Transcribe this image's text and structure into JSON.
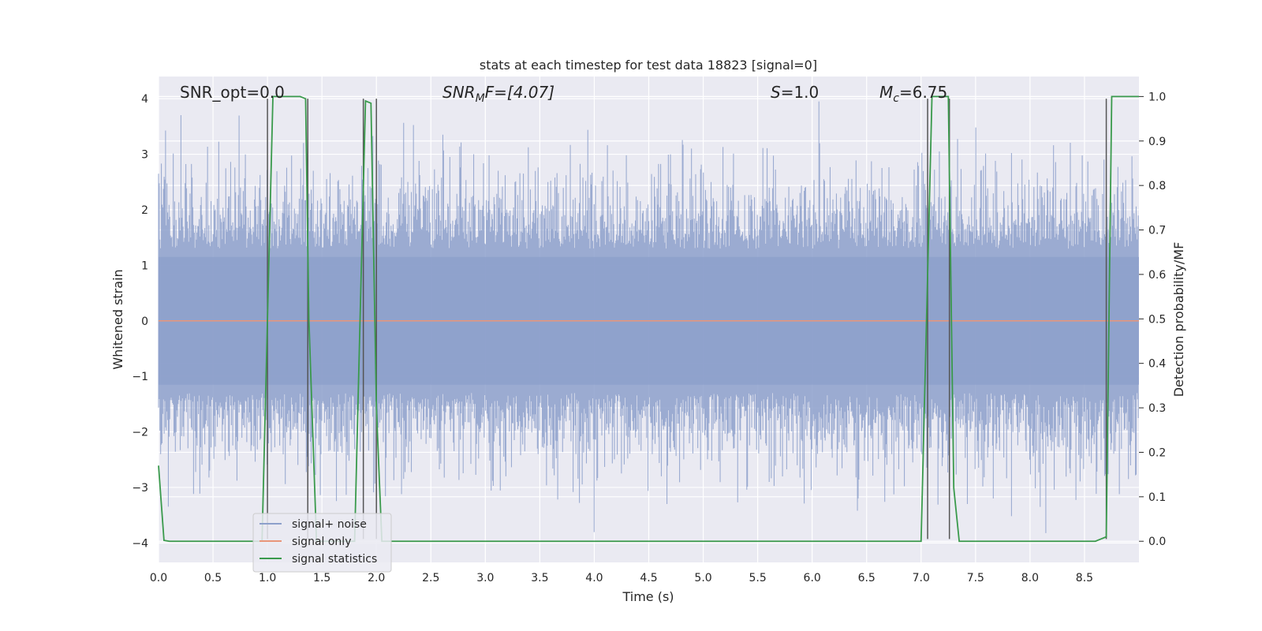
{
  "chart_data": {
    "type": "line",
    "title": "stats at each timestep for test data 18823 [signal=0]",
    "xlabel": "Time (s)",
    "ylabel": "Whitened strain",
    "y2label": "Detection probability/MF",
    "xlim": [
      0.0,
      9.0
    ],
    "ylim": [
      -4.35,
      4.4
    ],
    "y2lim": [
      -0.0475,
      1.045
    ],
    "x_ticks": [
      "0.0",
      "0.5",
      "1.0",
      "1.5",
      "2.0",
      "2.5",
      "3.0",
      "3.5",
      "4.0",
      "4.5",
      "5.0",
      "5.5",
      "6.0",
      "6.5",
      "7.0",
      "7.5",
      "8.0",
      "8.5"
    ],
    "y_ticks": [
      "4",
      "3",
      "2",
      "1",
      "0",
      "−1",
      "−2",
      "−3",
      "−4"
    ],
    "y2_ticks": [
      "1.0",
      "0.9",
      "0.8",
      "0.7",
      "0.6",
      "0.5",
      "0.4",
      "0.3",
      "0.2",
      "0.1",
      "0.0"
    ],
    "grid": true,
    "legend_position": "lower-left",
    "annotations": {
      "snr_opt": "SNR_opt=0.0",
      "snr_mf_main": "SNR",
      "snr_mf_sub": "M",
      "snr_mf_rest": "F=[4.07]",
      "s_main": "S",
      "s_rest": "=1.0",
      "mc_main": "M",
      "mc_sub": "c",
      "mc_rest": "=6.75"
    },
    "series": [
      {
        "name": "signal+ noise",
        "color": "#8da0cb",
        "description_values": "whitened noise samples, amplitude envelope approx -3.9 to 4.0"
      },
      {
        "name": "signal only",
        "color": "#e9967a",
        "x": [
          0.0,
          9.0
        ],
        "y": [
          0.0,
          0.0
        ]
      },
      {
        "name": "signal statistics",
        "color": "#3a9a4c",
        "axis": "right",
        "x": [
          0.0,
          0.05,
          0.1,
          0.9,
          0.95,
          1.0,
          1.05,
          1.1,
          1.3,
          1.35,
          1.38,
          1.45,
          1.75,
          1.8,
          1.85,
          1.9,
          1.95,
          2.0,
          2.05,
          2.1,
          2.15,
          6.95,
          7.0,
          7.05,
          7.1,
          7.15,
          7.25,
          7.3,
          7.35,
          7.4,
          8.6,
          8.7,
          8.75,
          8.8,
          9.0
        ],
        "y": [
          0.17,
          0.002,
          0.0,
          0.0,
          0.0,
          0.5,
          1.0,
          1.0,
          1.0,
          0.995,
          0.5,
          0.0,
          0.0,
          0.0,
          0.5,
          0.99,
          0.985,
          0.3,
          0.0,
          0.0,
          0.0,
          0.0,
          0.0,
          0.5,
          1.0,
          1.0,
          1.0,
          0.12,
          0.0,
          0.0,
          0.0,
          0.01,
          1.0,
          1.0,
          1.0
        ]
      }
    ],
    "vertical_markers": [
      1.0,
      1.37,
      1.88,
      2.0,
      7.06,
      7.26,
      8.7
    ]
  },
  "legend": {
    "items": [
      {
        "label": "signal+ noise",
        "color": "#8da0cb"
      },
      {
        "label": "signal only",
        "color": "#e9967a"
      },
      {
        "label": "signal statistics",
        "color": "#3a9a4c"
      }
    ]
  }
}
